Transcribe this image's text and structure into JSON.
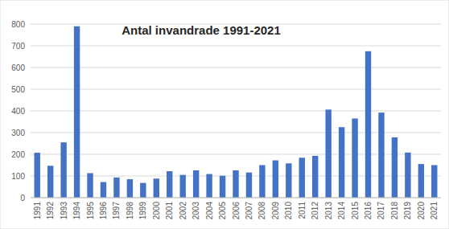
{
  "chart_data": {
    "type": "bar",
    "title": "Antal invandrade 1991-2021",
    "categories": [
      "1991",
      "1992",
      "1993",
      "1994",
      "1995",
      "1996",
      "1997",
      "1998",
      "1999",
      "2000",
      "2001",
      "2002",
      "2003",
      "2004",
      "2005",
      "2006",
      "2007",
      "2008",
      "2009",
      "2010",
      "2011",
      "2012",
      "2013",
      "2014",
      "2015",
      "2016",
      "2017",
      "2018",
      "2019",
      "2020",
      "2021"
    ],
    "values": [
      207,
      147,
      255,
      790,
      113,
      72,
      93,
      85,
      68,
      88,
      122,
      105,
      126,
      109,
      101,
      126,
      116,
      150,
      172,
      158,
      184,
      193,
      406,
      325,
      365,
      675,
      392,
      278,
      208,
      155,
      150
    ],
    "color": "#4472c4",
    "ylim": [
      0,
      800
    ],
    "yticks": [
      0,
      100,
      200,
      300,
      400,
      500,
      600,
      700,
      800
    ],
    "grid": true
  }
}
